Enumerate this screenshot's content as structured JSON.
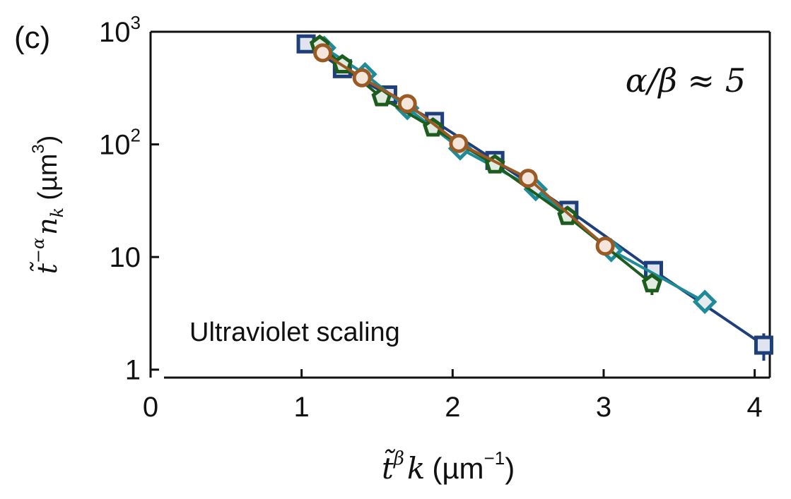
{
  "panel_label": "(c)",
  "chart_data": {
    "type": "scatter",
    "title": "",
    "xlabel": {
      "t": "t̃",
      "exp": "β",
      "var": "k",
      "unit_open": "(µm",
      "unit_exp": "−1",
      "unit_close": ")"
    },
    "ylabel": {
      "t": "t̃",
      "exp": "−α",
      "var": "n",
      "sub": "k",
      "unit_open": "(µm",
      "unit_exp": "3",
      "unit_close": ")"
    },
    "xlim": [
      0,
      4.1
    ],
    "ylim": [
      0.85,
      1000
    ],
    "yscale": "log",
    "xticks": [
      0,
      1,
      2,
      3,
      4
    ],
    "xtick_labels": [
      "0",
      "1",
      "2",
      "3",
      "4"
    ],
    "yticks": [
      1,
      10,
      100,
      1000
    ],
    "ytick_labels": [
      {
        "base": "1",
        "exp": ""
      },
      {
        "base": "10",
        "exp": ""
      },
      {
        "base": "10",
        "exp": "2"
      },
      {
        "base": "10",
        "exp": "3"
      }
    ],
    "annotations": {
      "ratio": "α/β ≈ 5",
      "label": "Ultraviolet scaling"
    },
    "series": [
      {
        "name": "squares",
        "marker": "square",
        "color": "#1f3f7a",
        "fill": "#dfe4ee",
        "x": [
          1.03,
          1.27,
          1.57,
          1.88,
          2.28,
          2.77,
          3.33,
          4.06
        ],
        "y": [
          780,
          470,
          275,
          160,
          72,
          26,
          7.6,
          1.65
        ],
        "err": [
          0,
          0,
          0,
          0,
          0,
          0,
          0,
          0.45
        ]
      },
      {
        "name": "diamonds",
        "marker": "diamond",
        "color": "#1f8a98",
        "fill": "#e6ecee",
        "x": [
          1.15,
          1.42,
          1.7,
          2.05,
          2.55,
          3.05,
          3.67
        ],
        "y": [
          720,
          420,
          210,
          92,
          40,
          11.5,
          4.0
        ],
        "err": [
          0,
          0,
          0,
          0,
          0,
          0,
          0
        ]
      },
      {
        "name": "pentagons",
        "marker": "pentagon",
        "color": "#1c5c1c",
        "fill": "#e1ebe1",
        "x": [
          1.12,
          1.27,
          1.53,
          1.87,
          2.28,
          2.76,
          3.32
        ],
        "y": [
          760,
          510,
          260,
          140,
          66,
          23,
          5.8
        ],
        "err": [
          0,
          0,
          0,
          0,
          0,
          0,
          1.2
        ]
      },
      {
        "name": "circles",
        "marker": "circle",
        "color": "#9a5a24",
        "fill": "#f5e6dc",
        "x": [
          1.14,
          1.4,
          1.7,
          2.04,
          2.5,
          3.01
        ],
        "y": [
          650,
          390,
          230,
          102,
          50,
          12.5
        ],
        "err": [
          0,
          0,
          0,
          0,
          0,
          0
        ]
      }
    ]
  }
}
